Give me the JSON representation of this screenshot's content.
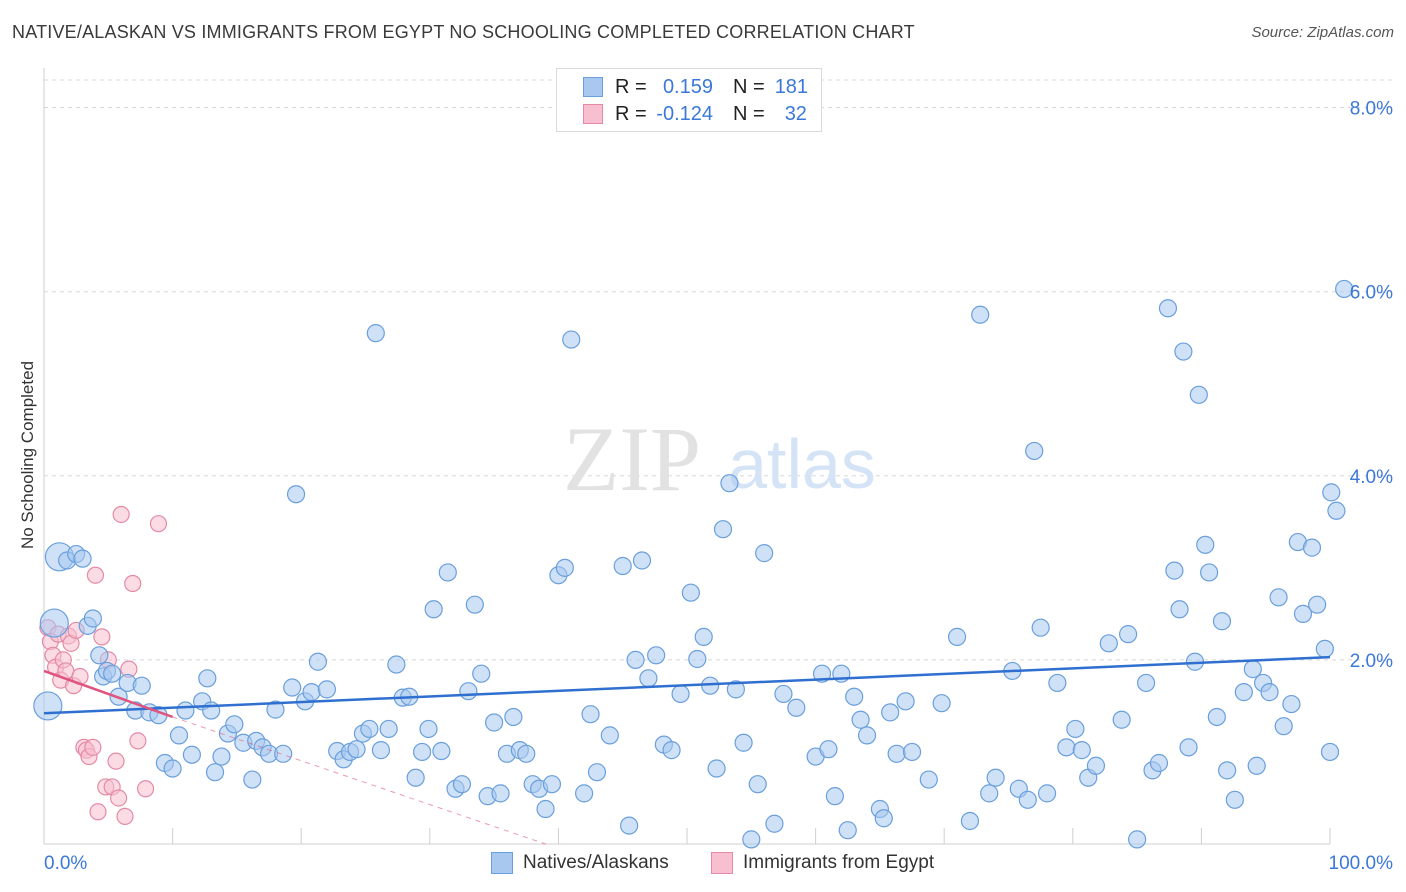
{
  "title": "NATIVE/ALASKAN VS IMMIGRANTS FROM EGYPT NO SCHOOLING COMPLETED CORRELATION CHART",
  "source": "Source: ZipAtlas.com",
  "watermark": {
    "zip": "ZIP",
    "atlas": "atlas"
  },
  "legend": {
    "rows": [
      {
        "r_label": "R =",
        "r_value": "0.159",
        "n_label": "N =",
        "n_value": "181"
      },
      {
        "r_label": "R =",
        "r_value": "-0.124",
        "n_label": "N =",
        "n_value": "32"
      }
    ]
  },
  "bottom_legend": {
    "series1": "Natives/Alaskans",
    "series2": "Immigrants from Egypt"
  },
  "colors": {
    "blue_fill": "#a8c8f0",
    "blue_stroke": "#6a9fdc",
    "blue_line": "#2f6fcf",
    "pink_fill": "#f7bfd0",
    "pink_stroke": "#e48aa6",
    "pink_line": "#e0557f",
    "grid": "#d8d8d8",
    "axis_text": "#3b78d8"
  },
  "chart_data": {
    "type": "scatter",
    "title": "NATIVE/ALASKAN VS IMMIGRANTS FROM EGYPT NO SCHOOLING COMPLETED CORRELATION CHART",
    "xlabel": "",
    "ylabel": "No Schooling Completed",
    "xlim": [
      0,
      100
    ],
    "ylim": [
      0,
      8.3
    ],
    "x_tick_labels": [
      "0.0%",
      "100.0%"
    ],
    "y_ticks": [
      2,
      4,
      6,
      8
    ],
    "y_tick_labels": [
      "2.0%",
      "4.0%",
      "6.0%",
      "8.0%"
    ],
    "series": [
      {
        "name": "Natives/Alaskans",
        "r": 0.159,
        "n": 181,
        "trend": {
          "x": [
            0,
            100
          ],
          "y": [
            1.42,
            2.03
          ]
        },
        "points": [
          {
            "x": 0.3,
            "y": 1.5,
            "big": true
          },
          {
            "x": 0.8,
            "y": 2.4,
            "big": true
          },
          {
            "x": 1.2,
            "y": 3.12,
            "big": true
          },
          {
            "x": 1.8,
            "y": 3.08
          },
          {
            "x": 2.5,
            "y": 3.15
          },
          {
            "x": 3.0,
            "y": 3.1
          },
          {
            "x": 3.4,
            "y": 2.37
          },
          {
            "x": 3.8,
            "y": 2.45
          },
          {
            "x": 4.3,
            "y": 2.05
          },
          {
            "x": 4.6,
            "y": 1.82
          },
          {
            "x": 4.9,
            "y": 1.88
          },
          {
            "x": 5.3,
            "y": 1.85
          },
          {
            "x": 5.8,
            "y": 1.6
          },
          {
            "x": 6.5,
            "y": 1.75
          },
          {
            "x": 7.1,
            "y": 1.45
          },
          {
            "x": 7.6,
            "y": 1.72
          },
          {
            "x": 8.2,
            "y": 1.43
          },
          {
            "x": 8.9,
            "y": 1.4
          },
          {
            "x": 9.4,
            "y": 0.88
          },
          {
            "x": 10.0,
            "y": 0.82
          },
          {
            "x": 10.5,
            "y": 1.18
          },
          {
            "x": 11.0,
            "y": 1.45
          },
          {
            "x": 11.5,
            "y": 0.97
          },
          {
            "x": 12.3,
            "y": 1.55
          },
          {
            "x": 12.7,
            "y": 1.8
          },
          {
            "x": 13.0,
            "y": 1.45
          },
          {
            "x": 13.3,
            "y": 0.78
          },
          {
            "x": 13.8,
            "y": 0.95
          },
          {
            "x": 14.3,
            "y": 1.2
          },
          {
            "x": 14.8,
            "y": 1.3
          },
          {
            "x": 15.5,
            "y": 1.1
          },
          {
            "x": 16.2,
            "y": 0.7
          },
          {
            "x": 16.5,
            "y": 1.12
          },
          {
            "x": 17.0,
            "y": 1.05
          },
          {
            "x": 17.5,
            "y": 0.98
          },
          {
            "x": 18.0,
            "y": 1.46
          },
          {
            "x": 18.6,
            "y": 0.98
          },
          {
            "x": 19.3,
            "y": 1.7
          },
          {
            "x": 19.6,
            "y": 3.8
          },
          {
            "x": 20.3,
            "y": 1.55
          },
          {
            "x": 20.8,
            "y": 1.65
          },
          {
            "x": 21.3,
            "y": 1.98
          },
          {
            "x": 22.0,
            "y": 1.68
          },
          {
            "x": 22.8,
            "y": 1.01
          },
          {
            "x": 23.3,
            "y": 0.92
          },
          {
            "x": 23.8,
            "y": 1.0
          },
          {
            "x": 24.3,
            "y": 1.03
          },
          {
            "x": 24.8,
            "y": 1.2
          },
          {
            "x": 25.3,
            "y": 1.25
          },
          {
            "x": 25.8,
            "y": 5.55
          },
          {
            "x": 26.2,
            "y": 1.02
          },
          {
            "x": 26.8,
            "y": 1.25
          },
          {
            "x": 27.4,
            "y": 1.95
          },
          {
            "x": 27.9,
            "y": 1.59
          },
          {
            "x": 28.4,
            "y": 1.6
          },
          {
            "x": 28.9,
            "y": 0.72
          },
          {
            "x": 29.4,
            "y": 1.0
          },
          {
            "x": 29.9,
            "y": 1.25
          },
          {
            "x": 30.3,
            "y": 2.55
          },
          {
            "x": 30.9,
            "y": 1.01
          },
          {
            "x": 31.4,
            "y": 2.95
          },
          {
            "x": 32.0,
            "y": 0.6
          },
          {
            "x": 32.5,
            "y": 0.65
          },
          {
            "x": 33.0,
            "y": 1.66
          },
          {
            "x": 33.5,
            "y": 2.6
          },
          {
            "x": 34.0,
            "y": 1.85
          },
          {
            "x": 34.5,
            "y": 0.52
          },
          {
            "x": 35.0,
            "y": 1.32
          },
          {
            "x": 35.5,
            "y": 0.55
          },
          {
            "x": 36.0,
            "y": 0.98
          },
          {
            "x": 36.5,
            "y": 1.38
          },
          {
            "x": 37.0,
            "y": 1.02
          },
          {
            "x": 37.5,
            "y": 0.98
          },
          {
            "x": 38.0,
            "y": 0.65
          },
          {
            "x": 38.5,
            "y": 0.6
          },
          {
            "x": 39.0,
            "y": 0.38
          },
          {
            "x": 39.5,
            "y": 0.65
          },
          {
            "x": 40.0,
            "y": 2.92
          },
          {
            "x": 40.5,
            "y": 3.0
          },
          {
            "x": 41.0,
            "y": 5.48
          },
          {
            "x": 42.0,
            "y": 0.55
          },
          {
            "x": 42.5,
            "y": 1.41
          },
          {
            "x": 43.0,
            "y": 0.78
          },
          {
            "x": 44.0,
            "y": 1.18
          },
          {
            "x": 45.0,
            "y": 3.02
          },
          {
            "x": 45.5,
            "y": 0.2
          },
          {
            "x": 46.0,
            "y": 2.0
          },
          {
            "x": 46.5,
            "y": 3.08
          },
          {
            "x": 47.0,
            "y": 1.8
          },
          {
            "x": 47.6,
            "y": 2.05
          },
          {
            "x": 48.2,
            "y": 1.08
          },
          {
            "x": 48.8,
            "y": 1.02
          },
          {
            "x": 49.5,
            "y": 1.63
          },
          {
            "x": 50.3,
            "y": 2.73
          },
          {
            "x": 50.8,
            "y": 2.01
          },
          {
            "x": 51.3,
            "y": 2.25
          },
          {
            "x": 51.8,
            "y": 1.72
          },
          {
            "x": 52.3,
            "y": 0.82
          },
          {
            "x": 52.8,
            "y": 3.42
          },
          {
            "x": 53.3,
            "y": 3.92
          },
          {
            "x": 53.8,
            "y": 1.68
          },
          {
            "x": 54.4,
            "y": 1.1
          },
          {
            "x": 55.0,
            "y": 0.05
          },
          {
            "x": 55.5,
            "y": 0.65
          },
          {
            "x": 56.0,
            "y": 3.16
          },
          {
            "x": 56.8,
            "y": 0.22
          },
          {
            "x": 57.5,
            "y": 1.63
          },
          {
            "x": 58.5,
            "y": 1.48
          },
          {
            "x": 60.0,
            "y": 0.95
          },
          {
            "x": 60.5,
            "y": 1.85
          },
          {
            "x": 61.0,
            "y": 1.03
          },
          {
            "x": 61.5,
            "y": 0.52
          },
          {
            "x": 62.0,
            "y": 1.85
          },
          {
            "x": 62.5,
            "y": 0.15
          },
          {
            "x": 63.0,
            "y": 1.6
          },
          {
            "x": 63.5,
            "y": 1.35
          },
          {
            "x": 64.0,
            "y": 1.18
          },
          {
            "x": 65.0,
            "y": 0.38
          },
          {
            "x": 65.3,
            "y": 0.28
          },
          {
            "x": 65.8,
            "y": 1.43
          },
          {
            "x": 66.3,
            "y": 0.98
          },
          {
            "x": 67.0,
            "y": 1.55
          },
          {
            "x": 67.5,
            "y": 1.0
          },
          {
            "x": 68.8,
            "y": 0.7
          },
          {
            "x": 69.8,
            "y": 1.53
          },
          {
            "x": 71.0,
            "y": 2.25
          },
          {
            "x": 72.0,
            "y": 0.25
          },
          {
            "x": 72.8,
            "y": 5.75
          },
          {
            "x": 73.5,
            "y": 0.55
          },
          {
            "x": 74.0,
            "y": 0.72
          },
          {
            "x": 75.3,
            "y": 1.88
          },
          {
            "x": 75.8,
            "y": 0.6
          },
          {
            "x": 76.5,
            "y": 0.48
          },
          {
            "x": 77.0,
            "y": 4.27
          },
          {
            "x": 77.5,
            "y": 2.35
          },
          {
            "x": 78.0,
            "y": 0.55
          },
          {
            "x": 78.8,
            "y": 1.75
          },
          {
            "x": 79.5,
            "y": 1.05
          },
          {
            "x": 80.2,
            "y": 1.25
          },
          {
            "x": 80.7,
            "y": 1.02
          },
          {
            "x": 81.2,
            "y": 0.72
          },
          {
            "x": 81.8,
            "y": 0.85
          },
          {
            "x": 82.8,
            "y": 2.18
          },
          {
            "x": 83.8,
            "y": 1.35
          },
          {
            "x": 84.3,
            "y": 2.28
          },
          {
            "x": 85.0,
            "y": 0.05
          },
          {
            "x": 85.7,
            "y": 1.75
          },
          {
            "x": 86.2,
            "y": 0.8
          },
          {
            "x": 86.7,
            "y": 0.88
          },
          {
            "x": 87.4,
            "y": 5.82
          },
          {
            "x": 87.9,
            "y": 2.97
          },
          {
            "x": 88.3,
            "y": 2.55
          },
          {
            "x": 88.6,
            "y": 5.35
          },
          {
            "x": 89.0,
            "y": 1.05
          },
          {
            "x": 89.5,
            "y": 1.98
          },
          {
            "x": 89.8,
            "y": 4.88
          },
          {
            "x": 90.3,
            "y": 3.25
          },
          {
            "x": 90.6,
            "y": 2.95
          },
          {
            "x": 91.2,
            "y": 1.38
          },
          {
            "x": 91.6,
            "y": 2.42
          },
          {
            "x": 92.0,
            "y": 0.8
          },
          {
            "x": 92.6,
            "y": 0.48
          },
          {
            "x": 93.3,
            "y": 1.65
          },
          {
            "x": 94.0,
            "y": 1.9
          },
          {
            "x": 94.3,
            "y": 0.85
          },
          {
            "x": 94.8,
            "y": 1.75
          },
          {
            "x": 95.3,
            "y": 1.65
          },
          {
            "x": 96.0,
            "y": 2.68
          },
          {
            "x": 96.4,
            "y": 1.28
          },
          {
            "x": 97.0,
            "y": 1.52
          },
          {
            "x": 97.5,
            "y": 3.28
          },
          {
            "x": 97.9,
            "y": 2.5
          },
          {
            "x": 98.6,
            "y": 3.22
          },
          {
            "x": 99.0,
            "y": 2.6
          },
          {
            "x": 100.0,
            "y": 1.0
          },
          {
            "x": 99.6,
            "y": 2.12
          },
          {
            "x": 100.1,
            "y": 3.82
          },
          {
            "x": 100.5,
            "y": 3.62
          },
          {
            "x": 101.1,
            "y": 6.03
          }
        ]
      },
      {
        "name": "Immigrants from Egypt",
        "r": -0.124,
        "n": 32,
        "trend": {
          "x": [
            0,
            10
          ],
          "y": [
            1.88,
            1.38
          ]
        },
        "trend_extension": {
          "x": [
            10,
            39
          ],
          "y": [
            1.38,
            0.0
          ]
        },
        "points": [
          {
            "x": 0.3,
            "y": 2.35
          },
          {
            "x": 0.5,
            "y": 2.2
          },
          {
            "x": 0.7,
            "y": 2.05
          },
          {
            "x": 0.9,
            "y": 1.92
          },
          {
            "x": 1.1,
            "y": 2.28
          },
          {
            "x": 1.3,
            "y": 1.78
          },
          {
            "x": 1.5,
            "y": 2.0
          },
          {
            "x": 1.7,
            "y": 1.88
          },
          {
            "x": 1.9,
            "y": 2.26
          },
          {
            "x": 2.1,
            "y": 2.18
          },
          {
            "x": 2.3,
            "y": 1.72
          },
          {
            "x": 2.5,
            "y": 2.32
          },
          {
            "x": 2.8,
            "y": 1.82
          },
          {
            "x": 3.1,
            "y": 1.05
          },
          {
            "x": 3.3,
            "y": 1.02
          },
          {
            "x": 3.5,
            "y": 0.95
          },
          {
            "x": 3.8,
            "y": 1.05
          },
          {
            "x": 4.0,
            "y": 2.92
          },
          {
            "x": 4.2,
            "y": 0.35
          },
          {
            "x": 4.5,
            "y": 2.25
          },
          {
            "x": 4.8,
            "y": 0.62
          },
          {
            "x": 5.0,
            "y": 2.0
          },
          {
            "x": 5.3,
            "y": 0.62
          },
          {
            "x": 5.6,
            "y": 0.9
          },
          {
            "x": 5.8,
            "y": 0.5
          },
          {
            "x": 6.0,
            "y": 3.58
          },
          {
            "x": 6.3,
            "y": 0.3
          },
          {
            "x": 6.6,
            "y": 1.9
          },
          {
            "x": 6.9,
            "y": 2.83
          },
          {
            "x": 7.3,
            "y": 1.12
          },
          {
            "x": 7.9,
            "y": 0.6
          },
          {
            "x": 8.9,
            "y": 3.48
          }
        ]
      }
    ]
  }
}
